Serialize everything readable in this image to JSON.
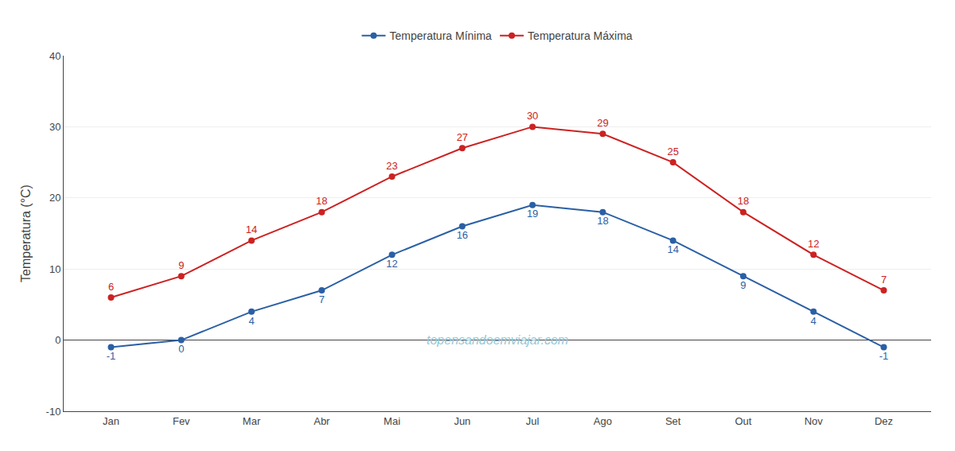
{
  "chart_data": {
    "type": "line",
    "categories": [
      "Jan",
      "Fev",
      "Mar",
      "Abr",
      "Mai",
      "Jun",
      "Jul",
      "Ago",
      "Set",
      "Out",
      "Nov",
      "Dez"
    ],
    "series": [
      {
        "name": "Temperatura Mínima",
        "color": "#2b5fa5",
        "values": [
          -1,
          0,
          4,
          7,
          12,
          16,
          19,
          18,
          14,
          9,
          4,
          -1
        ]
      },
      {
        "name": "Temperatura Máxima",
        "color": "#cc2222",
        "values": [
          6,
          9,
          14,
          18,
          23,
          27,
          30,
          29,
          25,
          18,
          12,
          7
        ]
      }
    ],
    "ylabel": "Temperatura (°C)",
    "ylim": [
      -10,
      40
    ],
    "yticks": [
      -10,
      0,
      10,
      20,
      30,
      40
    ],
    "grid": true,
    "legend": "top",
    "data_labels": true,
    "marker": "circle",
    "annotations": [
      {
        "text": "topensandoemviajar.com",
        "color": "#96c8d8"
      }
    ]
  }
}
